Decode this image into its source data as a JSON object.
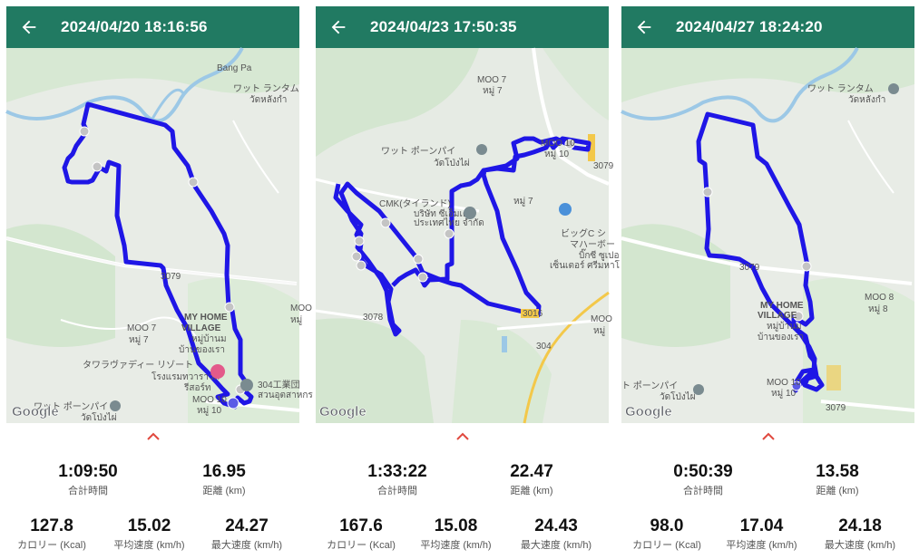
{
  "panels": [
    {
      "title": "2024/04/20 18:16:56",
      "map_labels": {
        "wat_top": "ワット ランタム",
        "wat_top_th": "วัดหลังกำ",
        "moo7": "MOO 7",
        "moo7_th": "หมู่ 7",
        "myhome": "MY HOME",
        "village": "VILLAGE",
        "myhome_th1": "หมู่บ้านม",
        "myhome_th2": "บ้านของเรา",
        "resort": "タワラヴァディー リゾート",
        "resort_th1": "โรงแรมทวาราวดี",
        "resort_th2": "รีสอร์ท",
        "factory": "304工業団",
        "factory_th": "สวนอุตสาหกร",
        "moo10": "MOO 10",
        "moo10_th": "หมู่ 10",
        "moo_edge": "MOO",
        "moo_edge_th": "หมู่",
        "wat_bottom": "ワット ポーンパイ",
        "wat_bottom_th": "วัดโป่งไผ่",
        "road3079": "3079",
        "river": "Bang Pa"
      },
      "google": "Google",
      "stats": {
        "time": {
          "value": "1:09:50",
          "label": "合計時間"
        },
        "distance": {
          "value": "16.95",
          "label": "距離 (km)"
        },
        "calories": {
          "value": "127.8",
          "label": "カロリー (Kcal)"
        },
        "avg_speed": {
          "value": "15.02",
          "label": "平均速度 (km/h)"
        },
        "max_speed": {
          "value": "24.27",
          "label": "最大速度 (km/h)"
        }
      }
    },
    {
      "title": "2024/04/23 17:50:35",
      "map_labels": {
        "moo7a": "MOO 7",
        "moo7a_th": "หมู่ 7",
        "wat": "ワット ポーンパイ",
        "wat_th": "วัดโป่งไผ่",
        "moo10": "MOO 10",
        "moo10_th": "หมู่ 10",
        "cmk": "CMK(タイランド)",
        "cmk_th1": "บริษัท ซีเอ็มเค",
        "cmk_th2": "ประเทศไทย จำกัด",
        "moo7b": "หมู่ 7",
        "bigc1": "ビッグC シ",
        "bigc2": "マハーボー",
        "bigc3": "บิ๊กซี ซูเปอ",
        "bigc4": "เซ็นเตอร์ ศรีมหาโ",
        "road3079": "3079",
        "road3078": "3078",
        "road3016": "3016",
        "road304": "304",
        "moo_edge": "MOO",
        "moo_edge_th": "หมู่"
      },
      "google": "Google",
      "stats": {
        "time": {
          "value": "1:33:22",
          "label": "合計時間"
        },
        "distance": {
          "value": "22.47",
          "label": "距離 (km)"
        },
        "calories": {
          "value": "167.6",
          "label": "カロリー (Kcal)"
        },
        "avg_speed": {
          "value": "15.08",
          "label": "平均速度 (km/h)"
        },
        "max_speed": {
          "value": "24.43",
          "label": "最大速度 (km/h)"
        }
      }
    },
    {
      "title": "2024/04/27 18:24:20",
      "map_labels": {
        "wat_top": "ワット ランタム",
        "wat_top_th": "วัดหลังกำ",
        "road3079a": "3079",
        "moo8": "MOO 8",
        "moo8_th": "หมู่ 8",
        "myhome": "MY HOME",
        "village": "VILLAGE",
        "myhome_th1": "หมู่บ้านม",
        "myhome_th2": "บ้านของเรา",
        "wat_bottom": "ト ポーンパイ",
        "wat_bottom_th": "วัดโป่งไผ่",
        "moo10": "MOO 10",
        "moo10_th": "หมู่ 10",
        "road3079b": "3079"
      },
      "google": "Google",
      "stats": {
        "time": {
          "value": "0:50:39",
          "label": "合計時間"
        },
        "distance": {
          "value": "13.58",
          "label": "距離 (km)"
        },
        "calories": {
          "value": "98.0",
          "label": "カロリー (Kcal)"
        },
        "avg_speed": {
          "value": "17.04",
          "label": "平均速度 (km/h)"
        },
        "max_speed": {
          "value": "24.18",
          "label": "最大速度 (km/h)"
        }
      }
    }
  ],
  "colors": {
    "header": "#217a62",
    "route": "#1f16e6",
    "chevron": "#e0483e",
    "water": "#9cc8e6",
    "road_major": "#f3c84a"
  },
  "icons": {
    "back": "arrow-left-icon",
    "expand": "chevron-up-icon",
    "place": "pin-icon"
  }
}
